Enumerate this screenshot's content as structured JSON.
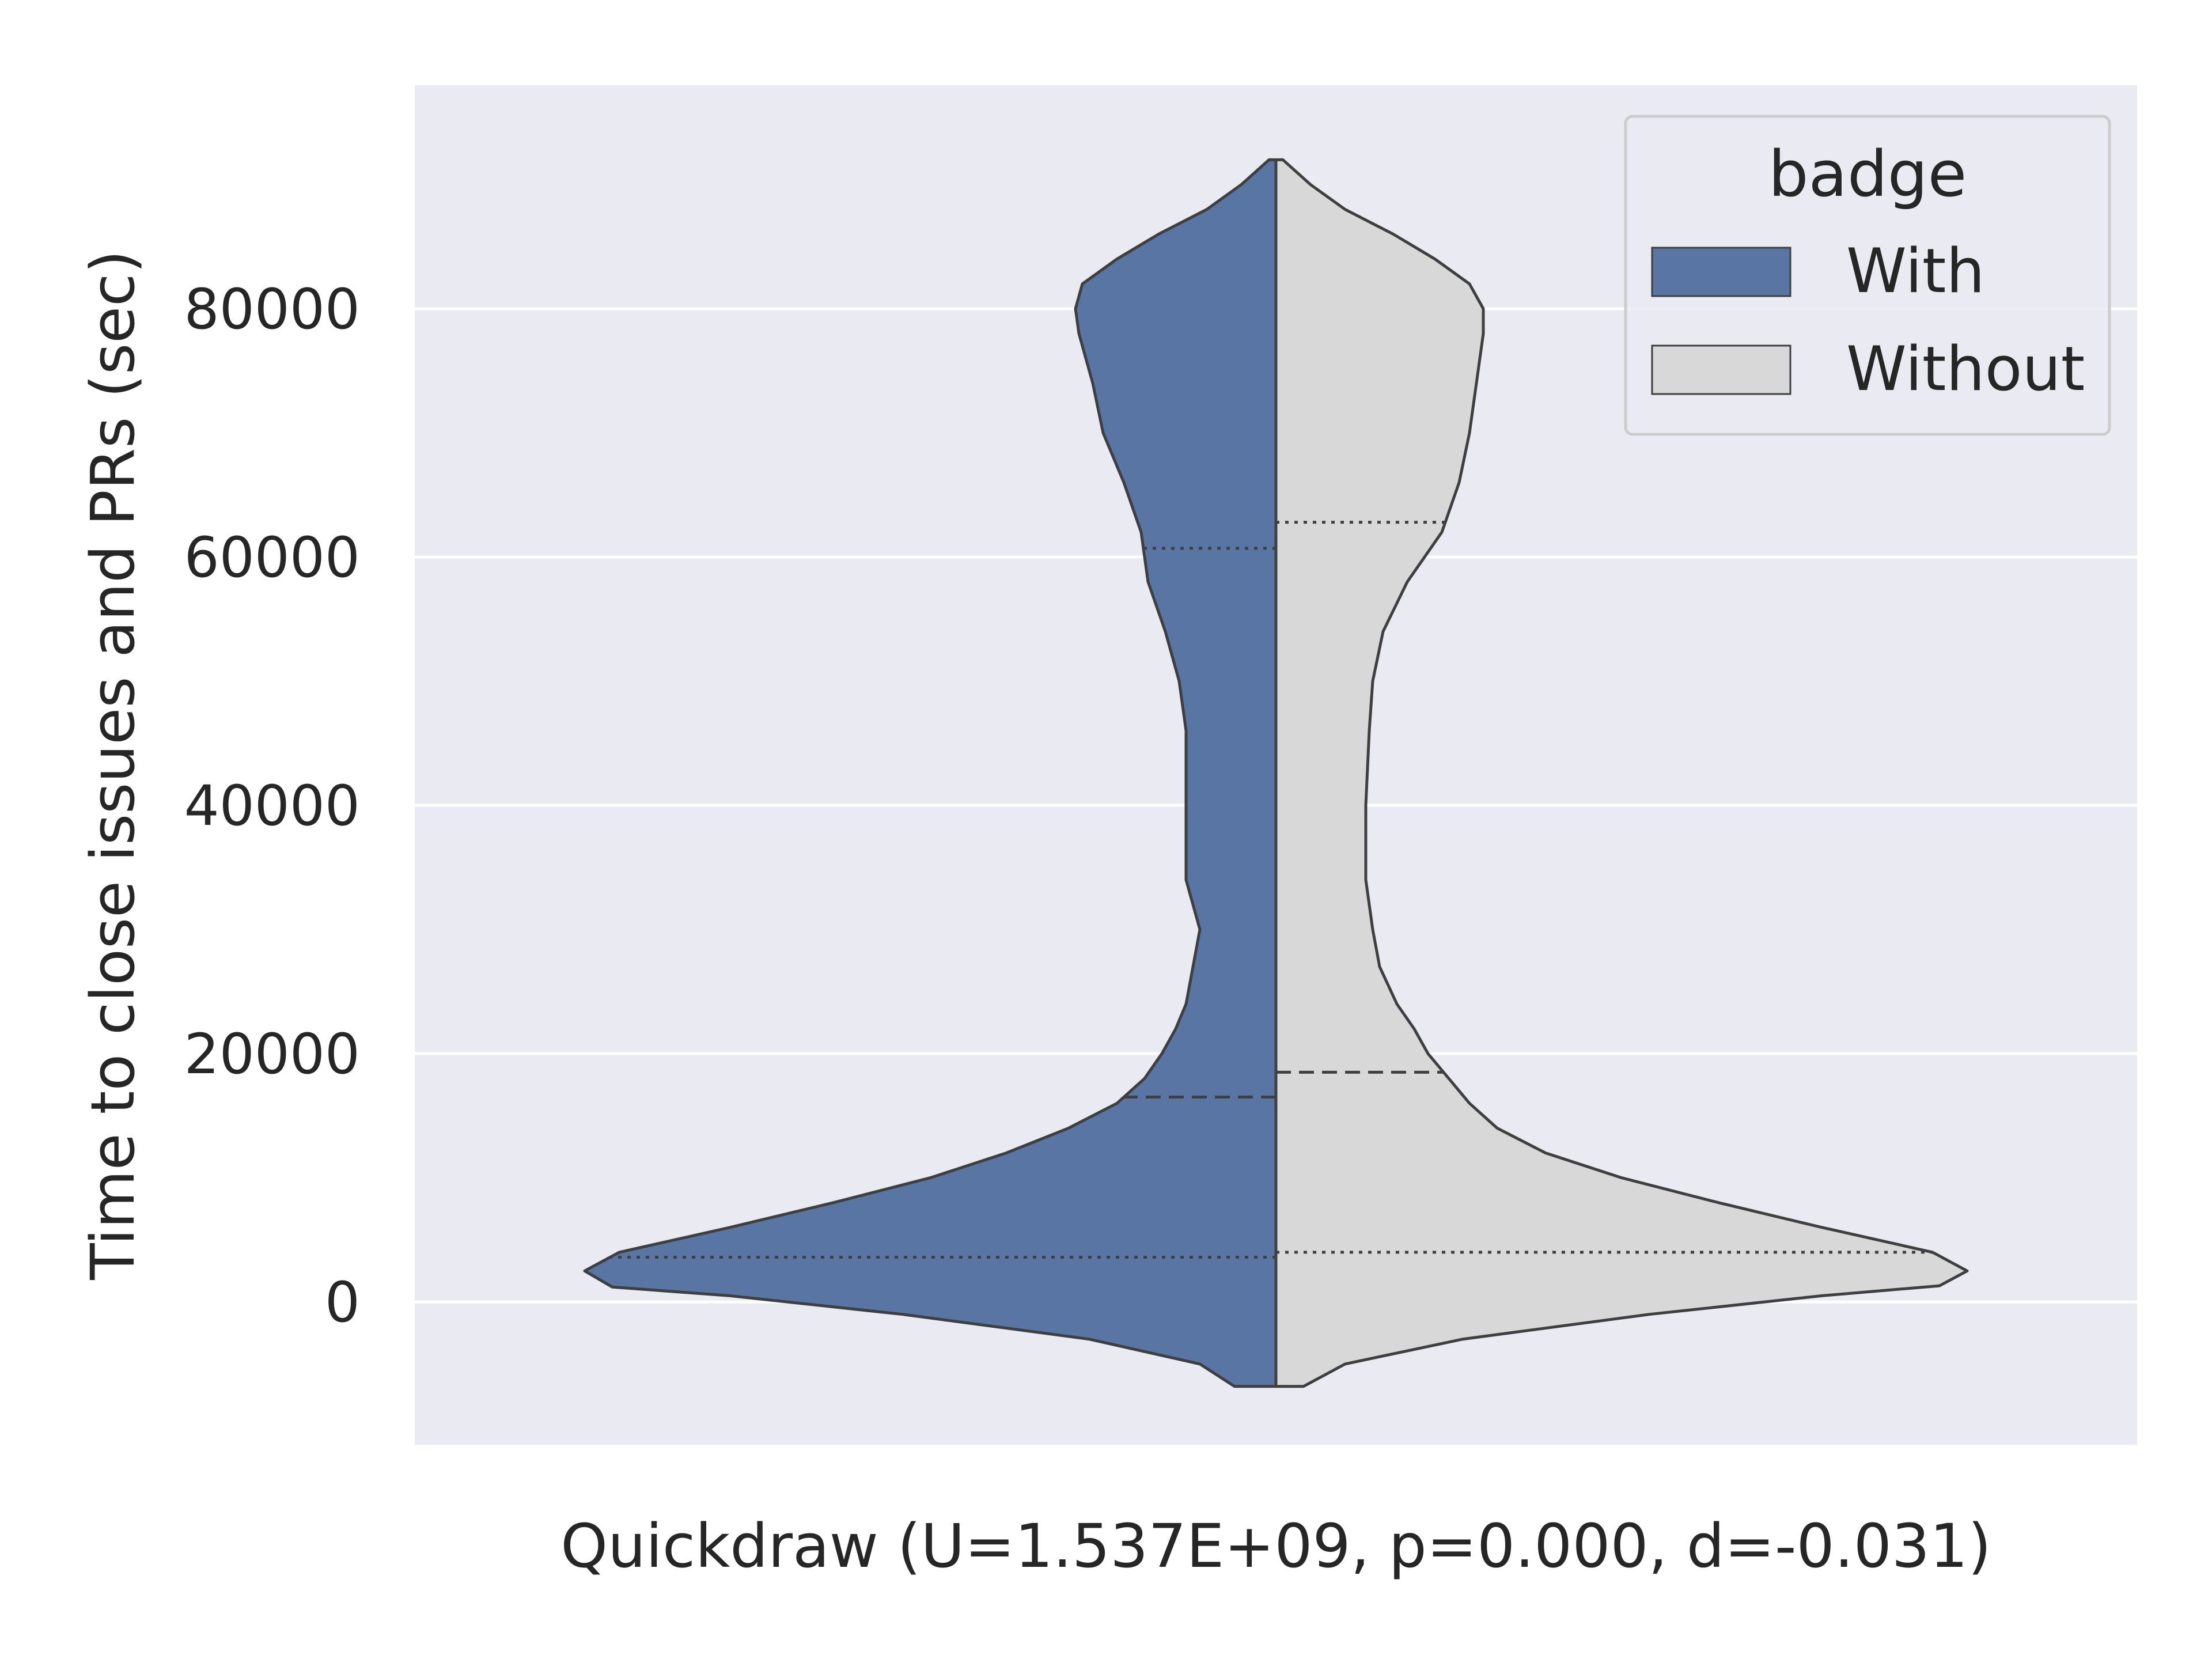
{
  "chart_data": {
    "type": "violin",
    "xlabel": "Quickdraw (U=1.537E+09, p=0.000, d=-0.031)",
    "ylabel": "Time to close issues and PRs (sec)",
    "ylim": [
      -11500,
      98000
    ],
    "yticks": [
      0,
      20000,
      40000,
      60000,
      80000
    ],
    "grid": true,
    "split": true,
    "legend": {
      "title": "badge",
      "placement": "top-right"
    },
    "series": [
      {
        "name": "With",
        "color": "#5975a4",
        "quartiles": {
          "q1": 3600,
          "median": 16500,
          "q3": 60700
        },
        "density_profile": [
          [
            -6800,
            0.06
          ],
          [
            -5000,
            0.11
          ],
          [
            -3000,
            0.27
          ],
          [
            -1000,
            0.54
          ],
          [
            500,
            0.79
          ],
          [
            1200,
            0.96
          ],
          [
            2500,
            1.0
          ],
          [
            4000,
            0.95
          ],
          [
            6000,
            0.79
          ],
          [
            8000,
            0.64
          ],
          [
            10000,
            0.5
          ],
          [
            12000,
            0.39
          ],
          [
            14000,
            0.3
          ],
          [
            16000,
            0.23
          ],
          [
            18000,
            0.19
          ],
          [
            20000,
            0.165
          ],
          [
            22000,
            0.145
          ],
          [
            24000,
            0.13
          ],
          [
            27000,
            0.12
          ],
          [
            30000,
            0.11
          ],
          [
            34000,
            0.13
          ],
          [
            40000,
            0.13
          ],
          [
            46000,
            0.13
          ],
          [
            50000,
            0.14
          ],
          [
            54000,
            0.16
          ],
          [
            58000,
            0.185
          ],
          [
            62000,
            0.195
          ],
          [
            66000,
            0.22
          ],
          [
            70000,
            0.25
          ],
          [
            74000,
            0.265
          ],
          [
            78000,
            0.285
          ],
          [
            80000,
            0.29
          ],
          [
            82000,
            0.28
          ],
          [
            84000,
            0.23
          ],
          [
            86000,
            0.17
          ],
          [
            88000,
            0.1
          ],
          [
            90000,
            0.05
          ],
          [
            92000,
            0.01
          ]
        ]
      },
      {
        "name": "Without",
        "color": "#d8d8d8",
        "quartiles": {
          "q1": 4000,
          "median": 18500,
          "q3": 62800
        },
        "density_profile": [
          [
            -6800,
            0.04
          ],
          [
            -5000,
            0.1
          ],
          [
            -3000,
            0.27
          ],
          [
            -1000,
            0.54
          ],
          [
            500,
            0.79
          ],
          [
            1300,
            0.96
          ],
          [
            2500,
            1.0
          ],
          [
            4000,
            0.95
          ],
          [
            6000,
            0.79
          ],
          [
            8000,
            0.64
          ],
          [
            10000,
            0.5
          ],
          [
            12000,
            0.39
          ],
          [
            14000,
            0.32
          ],
          [
            16000,
            0.28
          ],
          [
            18000,
            0.25
          ],
          [
            20000,
            0.22
          ],
          [
            22000,
            0.2
          ],
          [
            24000,
            0.175
          ],
          [
            27000,
            0.15
          ],
          [
            30000,
            0.14
          ],
          [
            34000,
            0.13
          ],
          [
            40000,
            0.13
          ],
          [
            46000,
            0.135
          ],
          [
            50000,
            0.14
          ],
          [
            54000,
            0.155
          ],
          [
            58000,
            0.19
          ],
          [
            62000,
            0.24
          ],
          [
            66000,
            0.265
          ],
          [
            70000,
            0.28
          ],
          [
            74000,
            0.29
          ],
          [
            78000,
            0.3
          ],
          [
            80000,
            0.3
          ],
          [
            82000,
            0.28
          ],
          [
            84000,
            0.23
          ],
          [
            86000,
            0.17
          ],
          [
            88000,
            0.1
          ],
          [
            90000,
            0.05
          ],
          [
            92000,
            0.01
          ]
        ]
      }
    ]
  }
}
